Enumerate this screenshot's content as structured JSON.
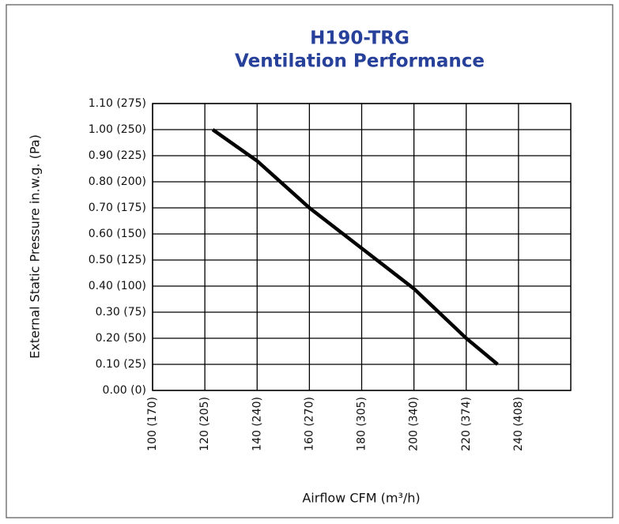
{
  "chart_data": {
    "type": "line",
    "title": "H190-TRG",
    "subtitle": "Ventilation Performance",
    "ylabel": "External Static Pressure in.w.g. (Pa)",
    "xlabel": "Airflow CFM (m³/h)",
    "x": [
      123,
      140,
      160,
      180,
      200,
      220,
      232
    ],
    "values": [
      1.0,
      0.88,
      0.7,
      0.545,
      0.39,
      0.2,
      0.1
    ],
    "color": "#000000",
    "xlim": [
      100,
      260
    ],
    "xticks": [
      {
        "value": 100,
        "label": "100 (170)"
      },
      {
        "value": 120,
        "label": "120 (205)"
      },
      {
        "value": 140,
        "label": "140 (240)"
      },
      {
        "value": 160,
        "label": "160 (270)"
      },
      {
        "value": 180,
        "label": "180 (305)"
      },
      {
        "value": 200,
        "label": "200 (340)"
      },
      {
        "value": 220,
        "label": "220 (374)"
      },
      {
        "value": 240,
        "label": "240 (408)"
      }
    ],
    "ylim": [
      0,
      1.1
    ],
    "yticks": [
      {
        "value": 0,
        "label": "0.00 (0)"
      },
      {
        "value": 0.1,
        "label": "0.10 (25)"
      },
      {
        "value": 0.2,
        "label": "0.20 (50)"
      },
      {
        "value": 0.3,
        "label": "0.30 (75)"
      },
      {
        "value": 0.4,
        "label": "0.40 (100)"
      },
      {
        "value": 0.5,
        "label": "0.50 (125)"
      },
      {
        "value": 0.6,
        "label": "0.60 (150)"
      },
      {
        "value": 0.7,
        "label": "0.70 (175)"
      },
      {
        "value": 0.8,
        "label": "0.80 (200)"
      },
      {
        "value": 0.9,
        "label": "0.90 (225)"
      },
      {
        "value": 1.0,
        "label": "1.00 (250)"
      },
      {
        "value": 1.1,
        "label": "1.10 (275)"
      }
    ],
    "grid": true
  }
}
